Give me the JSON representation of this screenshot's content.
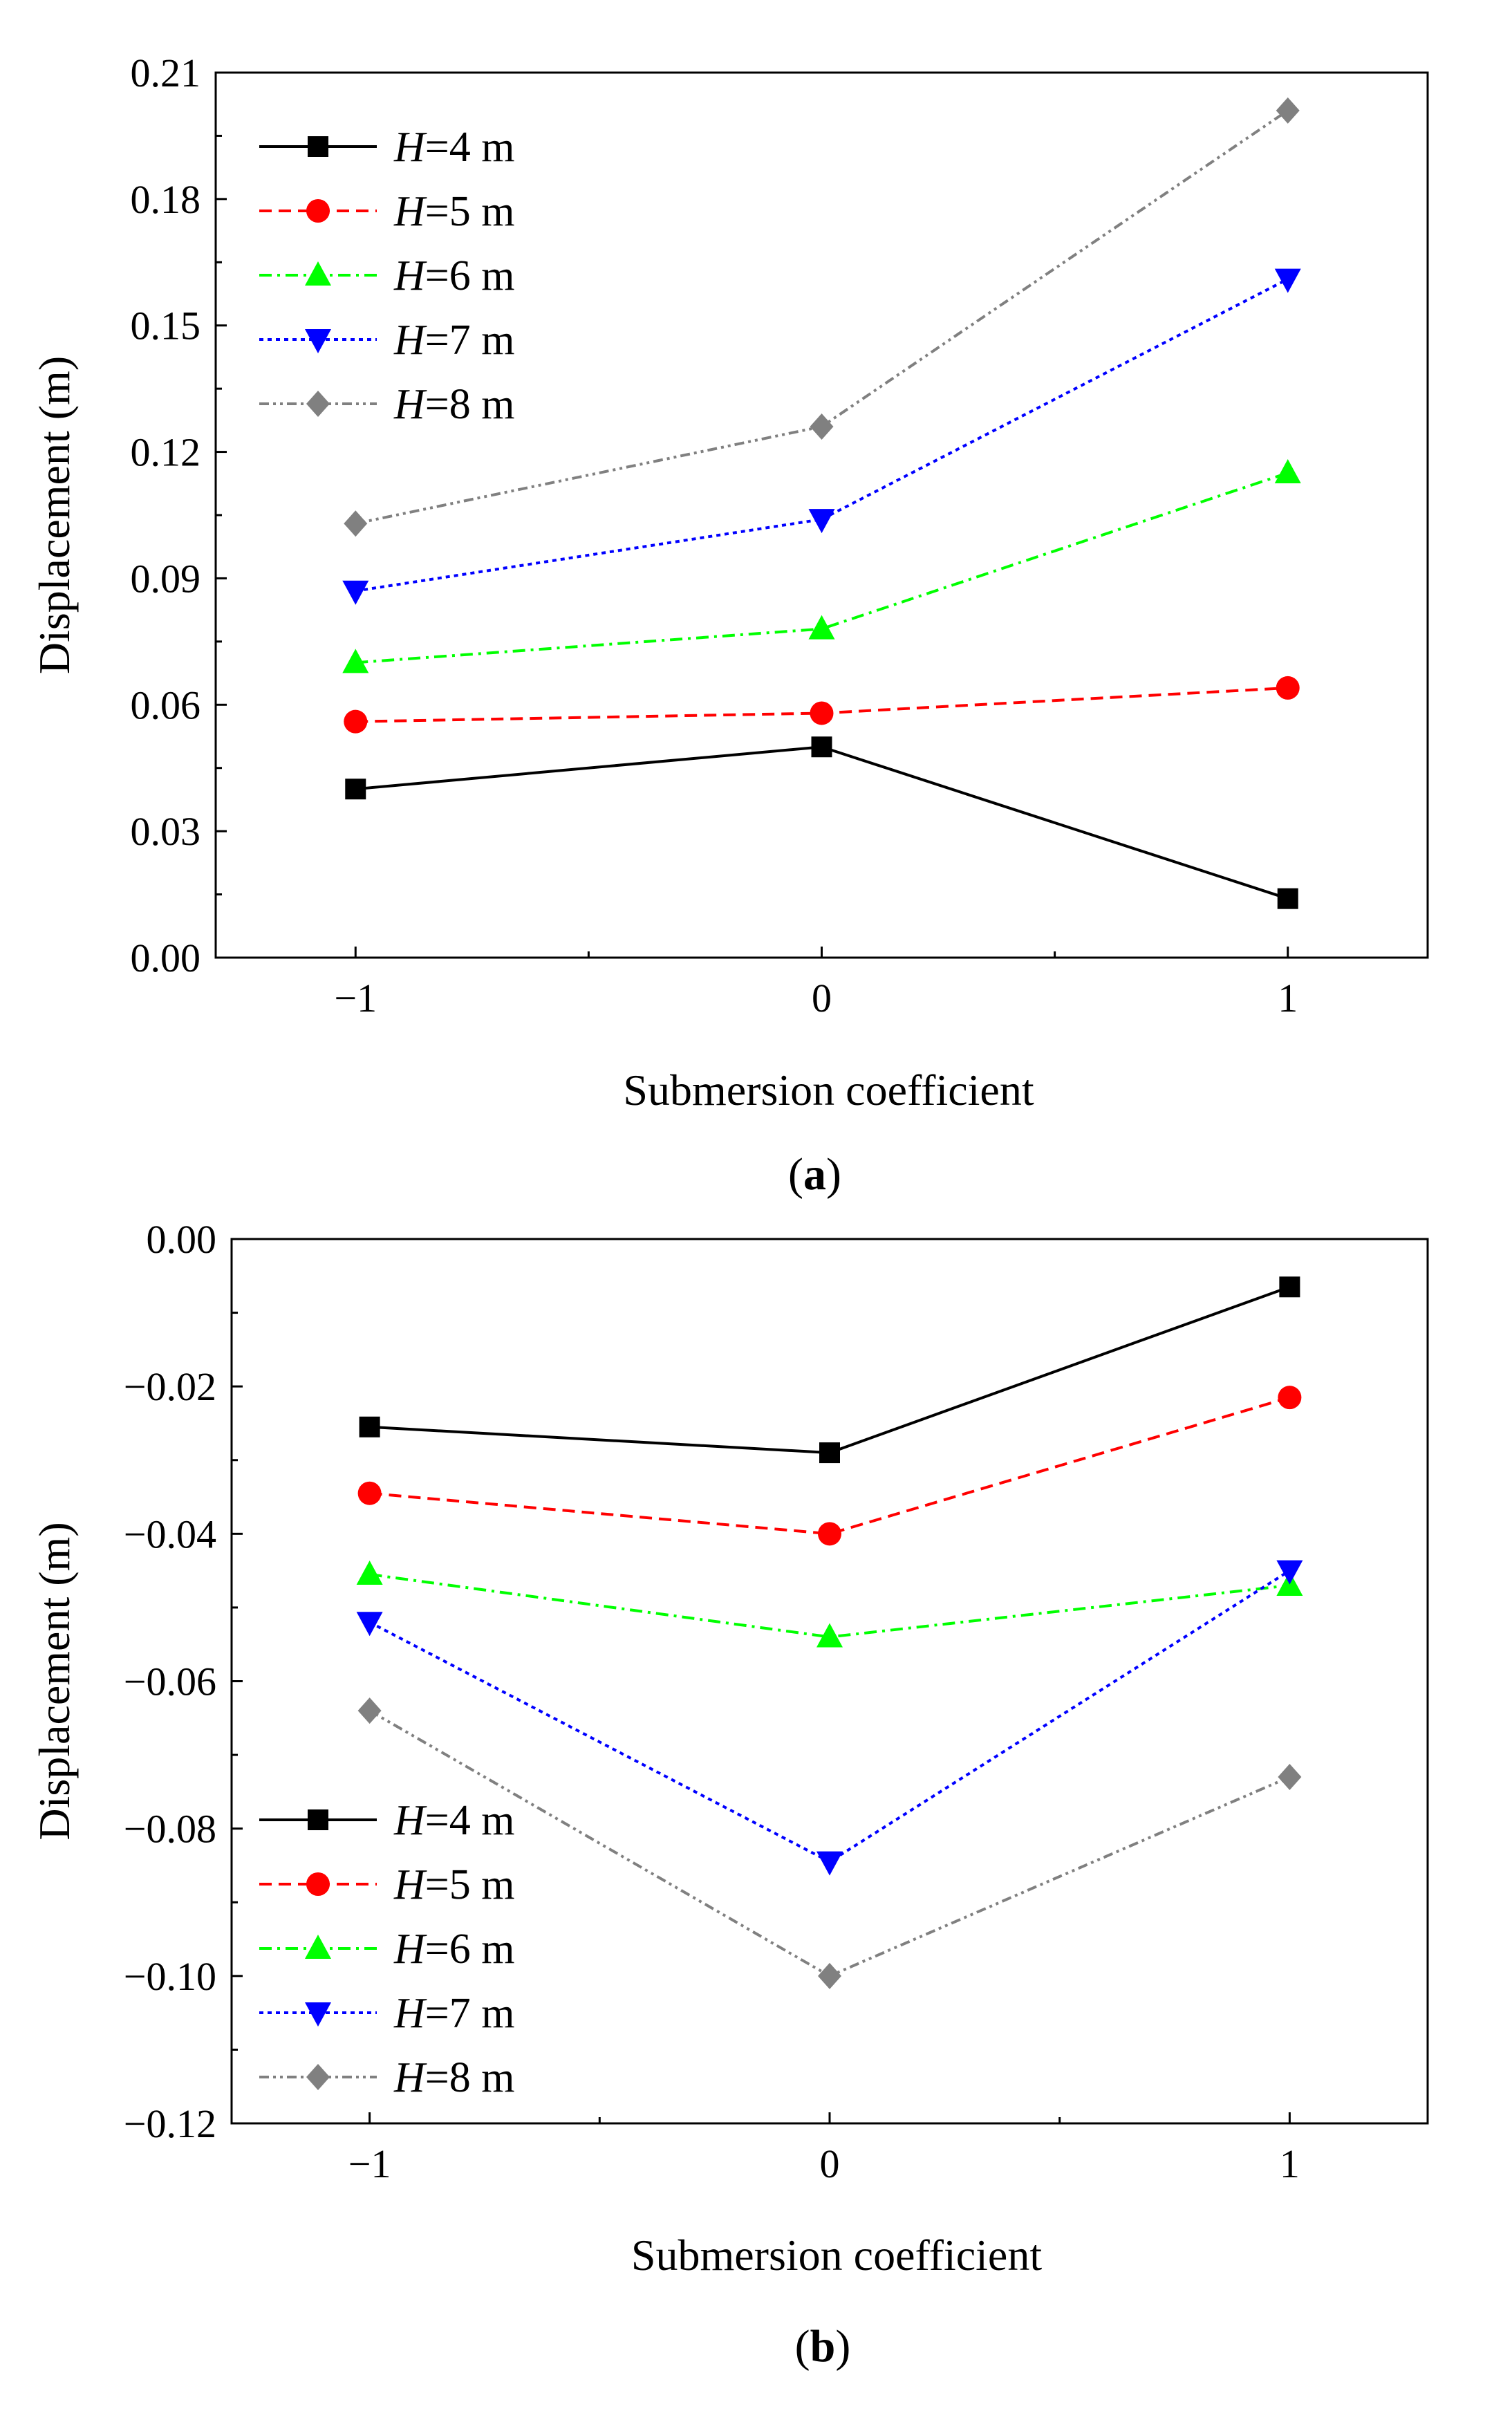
{
  "chart_data": [
    {
      "type": "line",
      "panel": "a",
      "caption": "(a)",
      "xlabel": "Submersion coefficient",
      "ylabel": "Displacement (m)",
      "x": [
        -1,
        0,
        1
      ],
      "xticks": [
        "−1",
        "0",
        "1"
      ],
      "xlim": [
        -1.3,
        1.3
      ],
      "ylim": [
        0,
        0.21
      ],
      "yticks": [
        "0.00",
        "0.03",
        "0.06",
        "0.09",
        "0.12",
        "0.15",
        "0.18",
        "0.21"
      ],
      "ytick_values": [
        0,
        0.03,
        0.06,
        0.09,
        0.12,
        0.15,
        0.18,
        0.21
      ],
      "legend_position": "top-left",
      "grid": false,
      "series": [
        {
          "name": "H=4 m",
          "italic": "H",
          "suffix": "=4 m",
          "color": "#000000",
          "marker": "square",
          "dash": "",
          "values": [
            0.04,
            0.05,
            0.014
          ]
        },
        {
          "name": "H=5 m",
          "italic": "H",
          "suffix": "=5 m",
          "color": "#ff0000",
          "marker": "circle",
          "dash": "18,10",
          "values": [
            0.056,
            0.058,
            0.064
          ]
        },
        {
          "name": "H=6 m",
          "italic": "H",
          "suffix": "=6 m",
          "color": "#00ff00",
          "marker": "triangle-up",
          "dash": "18,8,4,8",
          "values": [
            0.07,
            0.078,
            0.115
          ]
        },
        {
          "name": "H=7 m",
          "italic": "H",
          "suffix": "=7 m",
          "color": "#0000ff",
          "marker": "triangle-down",
          "dash": "6,6",
          "values": [
            0.087,
            0.104,
            0.161
          ]
        },
        {
          "name": "H=8 m",
          "italic": "H",
          "suffix": "=8 m",
          "color": "#808080",
          "marker": "diamond",
          "dash": "14,6,4,6,4,6",
          "values": [
            0.103,
            0.126,
            0.201
          ]
        }
      ]
    },
    {
      "type": "line",
      "panel": "b",
      "caption": "(b)",
      "xlabel": "Submersion coefficient",
      "ylabel": "Displacement (m)",
      "x": [
        -1,
        0,
        1
      ],
      "xticks": [
        "−1",
        "0",
        "1"
      ],
      "xlim": [
        -1.3,
        1.3
      ],
      "ylim": [
        -0.12,
        0
      ],
      "yticks": [
        "0.00",
        "−0.02",
        "−0.04",
        "−0.06",
        "−0.08",
        "−0.10",
        "−0.12"
      ],
      "ytick_values": [
        0,
        -0.02,
        -0.04,
        -0.06,
        -0.08,
        -0.1,
        -0.12
      ],
      "legend_position": "bottom-left",
      "grid": false,
      "series": [
        {
          "name": "H=4 m",
          "italic": "H",
          "suffix": "=4 m",
          "color": "#000000",
          "marker": "square",
          "dash": "",
          "values": [
            -0.0255,
            -0.029,
            -0.0065
          ]
        },
        {
          "name": "H=5 m",
          "italic": "H",
          "suffix": "=5 m",
          "color": "#ff0000",
          "marker": "circle",
          "dash": "18,10",
          "values": [
            -0.0345,
            -0.04,
            -0.0215
          ]
        },
        {
          "name": "H=6 m",
          "italic": "H",
          "suffix": "=6 m",
          "color": "#00ff00",
          "marker": "triangle-up",
          "dash": "18,8,4,8",
          "values": [
            -0.0455,
            -0.054,
            -0.047
          ]
        },
        {
          "name": "H=7 m",
          "italic": "H",
          "suffix": "=7 m",
          "color": "#0000ff",
          "marker": "triangle-down",
          "dash": "6,6",
          "values": [
            -0.052,
            -0.0845,
            -0.045
          ]
        },
        {
          "name": "H=8 m",
          "italic": "H",
          "suffix": "=8 m",
          "color": "#808080",
          "marker": "diamond",
          "dash": "14,6,4,6,4,6",
          "values": [
            -0.064,
            -0.1,
            -0.073
          ]
        }
      ]
    }
  ]
}
